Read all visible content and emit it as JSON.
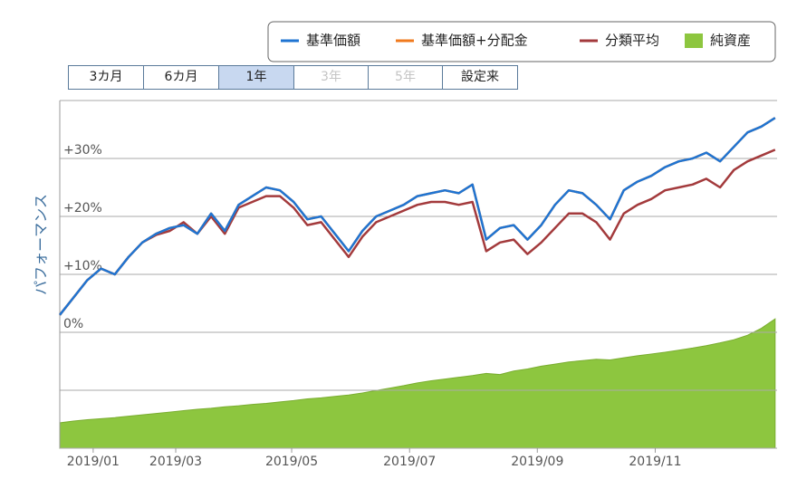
{
  "chart_data": {
    "type": "line",
    "ylabel": "パフォーマンス",
    "buttons": [
      {
        "label": "3カ月",
        "state": "normal"
      },
      {
        "label": "6カ月",
        "state": "normal"
      },
      {
        "label": "1年",
        "state": "active"
      },
      {
        "label": "3年",
        "state": "disabled"
      },
      {
        "label": "5年",
        "state": "disabled"
      },
      {
        "label": "設定来",
        "state": "normal"
      }
    ],
    "x": [
      0,
      7,
      14,
      21,
      28,
      35,
      42,
      49,
      56,
      63,
      70,
      77,
      84,
      91,
      98,
      105,
      112,
      119,
      126,
      133,
      140,
      147,
      154,
      161,
      168,
      175,
      182,
      189,
      196,
      203,
      210,
      217,
      224,
      231,
      238,
      245,
      252,
      259,
      266,
      273,
      280,
      287,
      294,
      301,
      308,
      315,
      322,
      329,
      336,
      343,
      350,
      357,
      364
    ],
    "xlim": [
      0,
      365
    ],
    "xticks": [
      {
        "value": 17,
        "label": "2019/01"
      },
      {
        "value": 59,
        "label": "2019/03"
      },
      {
        "value": 118,
        "label": "2019/05"
      },
      {
        "value": 178,
        "label": "2019/07"
      },
      {
        "value": 243,
        "label": "2019/09"
      },
      {
        "value": 303,
        "label": "2019/11"
      }
    ],
    "ylim": [
      -20,
      40
    ],
    "yticks": [
      {
        "value": 0,
        "label": "0%"
      },
      {
        "value": 10,
        "label": "+10%"
      },
      {
        "value": 20,
        "label": "+20%"
      },
      {
        "value": 30,
        "label": "+30%"
      }
    ],
    "ygrid": [
      -20,
      -10,
      40
    ],
    "y2lim": [
      0,
      100
    ],
    "grid": true,
    "series": [
      {
        "name": "基準価額",
        "color": "#1f74d2",
        "values": [
          3,
          6,
          9,
          11,
          10,
          13,
          15.5,
          17,
          18,
          18.5,
          17,
          20.5,
          17.5,
          22,
          23.5,
          25,
          24.5,
          22.5,
          19.5,
          20,
          17,
          14,
          17.5,
          20,
          21,
          22,
          23.5,
          24,
          24.5,
          24,
          25.5,
          16,
          18,
          18.5,
          16,
          18.5,
          22,
          24.5,
          24,
          22,
          19.5,
          24.5,
          26,
          27,
          28.5,
          29.5,
          30,
          31,
          29.5,
          32,
          34.5,
          35.5,
          37
        ]
      },
      {
        "name": "基準価額+分配金",
        "color": "#f07a1e",
        "values": [
          3,
          6,
          9,
          11,
          10,
          13,
          15.5,
          17,
          18,
          18.5,
          17,
          20.5,
          17.5,
          22,
          23.5,
          25,
          24.5,
          22.5,
          19.5,
          20,
          17,
          14,
          17.5,
          20,
          21,
          22,
          23.5,
          24,
          24.5,
          24,
          25.5,
          16,
          18,
          18.5,
          16,
          18.5,
          22,
          24.5,
          24,
          22,
          19.5,
          24.5,
          26,
          27,
          28.5,
          29.5,
          30,
          31,
          29.5,
          32,
          34.5,
          35.5,
          37
        ]
      },
      {
        "name": "分類平均",
        "color": "#a33a3c",
        "values": [
          3,
          6,
          9,
          11,
          10,
          13,
          15.5,
          16.8,
          17.5,
          19,
          17,
          20,
          17,
          21.5,
          22.5,
          23.5,
          23.5,
          21.5,
          18.5,
          19,
          16,
          13,
          16.5,
          19,
          20,
          21,
          22,
          22.5,
          22.5,
          22,
          22.5,
          14,
          15.5,
          16,
          13.5,
          15.5,
          18,
          20.5,
          20.5,
          19,
          16,
          20.5,
          22,
          23,
          24.5,
          25,
          25.5,
          26.5,
          25,
          28,
          29.5,
          30.5,
          31.5
        ]
      },
      {
        "name": "純資産",
        "color": "#8dc63f",
        "type": "area",
        "axis": "y2",
        "values": [
          7.3,
          7.8,
          8.2,
          8.5,
          8.8,
          9.2,
          9.6,
          10.0,
          10.4,
          10.8,
          11.2,
          11.5,
          11.9,
          12.2,
          12.6,
          12.9,
          13.3,
          13.7,
          14.2,
          14.5,
          14.9,
          15.3,
          15.9,
          16.6,
          17.3,
          18.0,
          18.8,
          19.4,
          19.9,
          20.4,
          20.9,
          21.5,
          21.2,
          22.2,
          22.8,
          23.6,
          24.2,
          24.8,
          25.2,
          25.6,
          25.4,
          26.0,
          26.6,
          27.1,
          27.6,
          28.2,
          28.8,
          29.5,
          30.3,
          31.2,
          32.5,
          34.5,
          37.2
        ]
      }
    ]
  }
}
